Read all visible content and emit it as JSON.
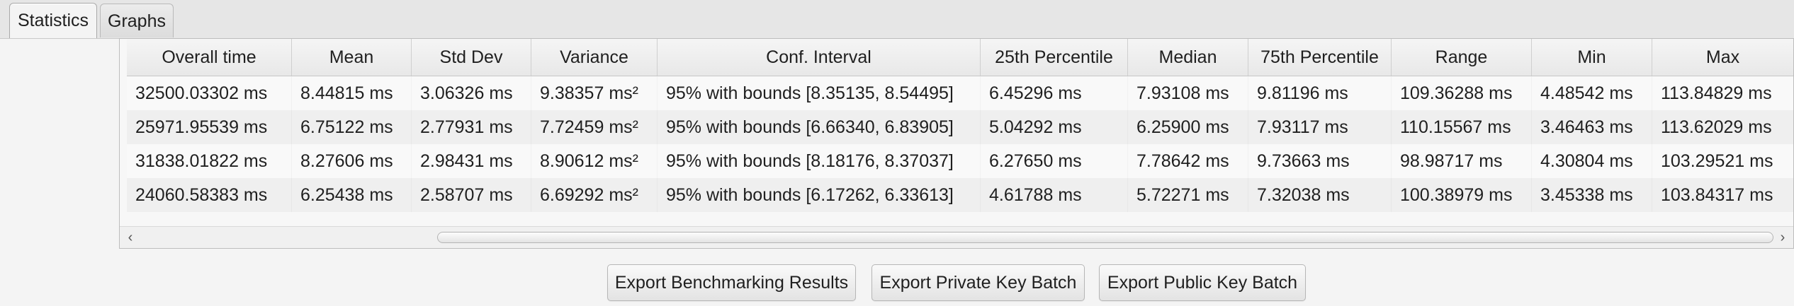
{
  "tabs": [
    {
      "label": "Statistics",
      "active": true
    },
    {
      "label": "Graphs",
      "active": false
    }
  ],
  "table": {
    "columns": [
      "Overall time",
      "Mean",
      "Std Dev",
      "Variance",
      "Conf. Interval",
      "25th Percentile",
      "Median",
      "75th Percentile",
      "Range",
      "Min",
      "Max"
    ],
    "rows": [
      [
        "32500.03302 ms",
        "8.44815 ms",
        "3.06326 ms",
        "9.38357 ms²",
        "95% with bounds [8.35135, 8.54495]",
        "6.45296 ms",
        "7.93108 ms",
        "9.81196 ms",
        "109.36288 ms",
        "4.48542 ms",
        "113.84829 ms"
      ],
      [
        "25971.95539 ms",
        "6.75122 ms",
        "2.77931 ms",
        "7.72459 ms²",
        "95% with bounds [6.66340, 6.83905]",
        "5.04292 ms",
        "6.25900 ms",
        "7.93117 ms",
        "110.15567 ms",
        "3.46463 ms",
        "113.62029 ms"
      ],
      [
        "31838.01822 ms",
        "8.27606 ms",
        "2.98431 ms",
        "8.90612 ms²",
        "95% with bounds [8.18176, 8.37037]",
        "6.27650 ms",
        "7.78642 ms",
        "9.73663 ms",
        "98.98717 ms",
        "4.30804 ms",
        "103.29521 ms"
      ],
      [
        "24060.58383 ms",
        "6.25438 ms",
        "2.58707 ms",
        "6.69292 ms²",
        "95% with bounds [6.17262, 6.33613]",
        "4.61788 ms",
        "5.72271 ms",
        "7.32038 ms",
        "100.38979 ms",
        "3.45338 ms",
        "103.84317 ms"
      ]
    ]
  },
  "scrollbar": {
    "left_arrow": "‹",
    "right_arrow": "›"
  },
  "buttons": {
    "export_benchmark": "Export Benchmarking Results",
    "export_private": "Export Private Key Batch",
    "export_public": "Export Public Key Batch"
  },
  "colors": {
    "background": "#f4f4f4",
    "row_odd": "#f9f9f9",
    "row_even": "#efefef"
  }
}
